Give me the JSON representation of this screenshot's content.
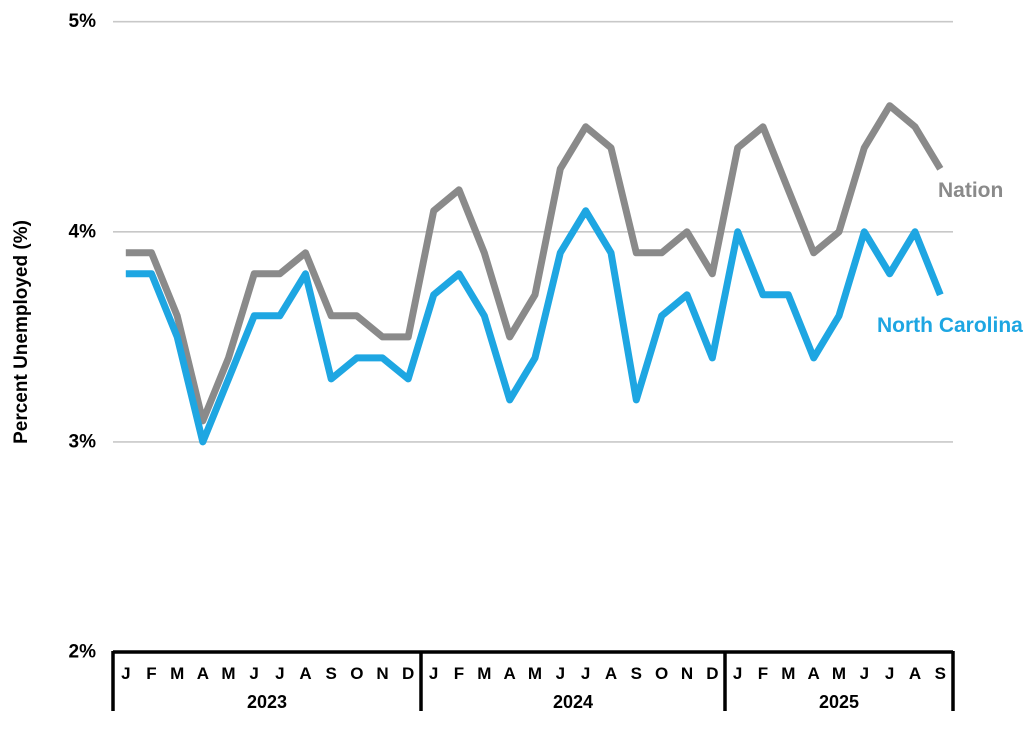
{
  "chart_data": {
    "type": "line",
    "title": "",
    "ylabel": "Percent Unemployed (%)",
    "xlabel": "",
    "ylim": [
      2,
      5
    ],
    "grid": "horizontal gridlines at 3%, 4%, 5%; 2% level is the black x-axis line",
    "legend_position": "end-of-line labels at right side of plot",
    "yticks": [
      {
        "value": 5,
        "label": "5%"
      },
      {
        "value": 4,
        "label": "4%"
      },
      {
        "value": 3,
        "label": "3%"
      },
      {
        "value": 2,
        "label": "2%"
      }
    ],
    "x_axis": {
      "years": [
        {
          "label": "2023",
          "months": [
            "J",
            "F",
            "M",
            "A",
            "M",
            "J",
            "J",
            "A",
            "S",
            "O",
            "N",
            "D"
          ]
        },
        {
          "label": "2024",
          "months": [
            "J",
            "F",
            "M",
            "A",
            "M",
            "J",
            "J",
            "A",
            "S",
            "O",
            "N",
            "D"
          ]
        },
        {
          "label": "2025",
          "months": [
            "J",
            "F",
            "M",
            "A",
            "M",
            "J",
            "J",
            "A",
            "S"
          ]
        }
      ]
    },
    "series": [
      {
        "name": "Nation",
        "color": "#8A8A8A",
        "values": [
          3.9,
          3.9,
          3.6,
          3.1,
          3.4,
          3.8,
          3.8,
          3.9,
          3.6,
          3.6,
          3.5,
          3.5,
          4.1,
          4.2,
          3.9,
          3.5,
          3.7,
          4.3,
          4.5,
          4.4,
          3.9,
          3.9,
          4.0,
          3.8,
          4.4,
          4.5,
          4.2,
          3.9,
          4.0,
          4.4,
          4.6,
          4.5,
          4.3
        ]
      },
      {
        "name": "North Carolina",
        "color": "#1EA6E2",
        "values": [
          3.8,
          3.8,
          3.5,
          3.0,
          3.3,
          3.6,
          3.6,
          3.8,
          3.3,
          3.4,
          3.4,
          3.3,
          3.7,
          3.8,
          3.6,
          3.2,
          3.4,
          3.9,
          4.1,
          3.9,
          3.2,
          3.6,
          3.7,
          3.4,
          4.0,
          3.7,
          3.7,
          3.4,
          3.6,
          4.0,
          3.8,
          4.0,
          3.7
        ]
      }
    ],
    "colors": {
      "axis": "#000000",
      "gridline": "#C8C8C8",
      "tick_text": "#000000",
      "background": "#FFFFFF"
    }
  }
}
